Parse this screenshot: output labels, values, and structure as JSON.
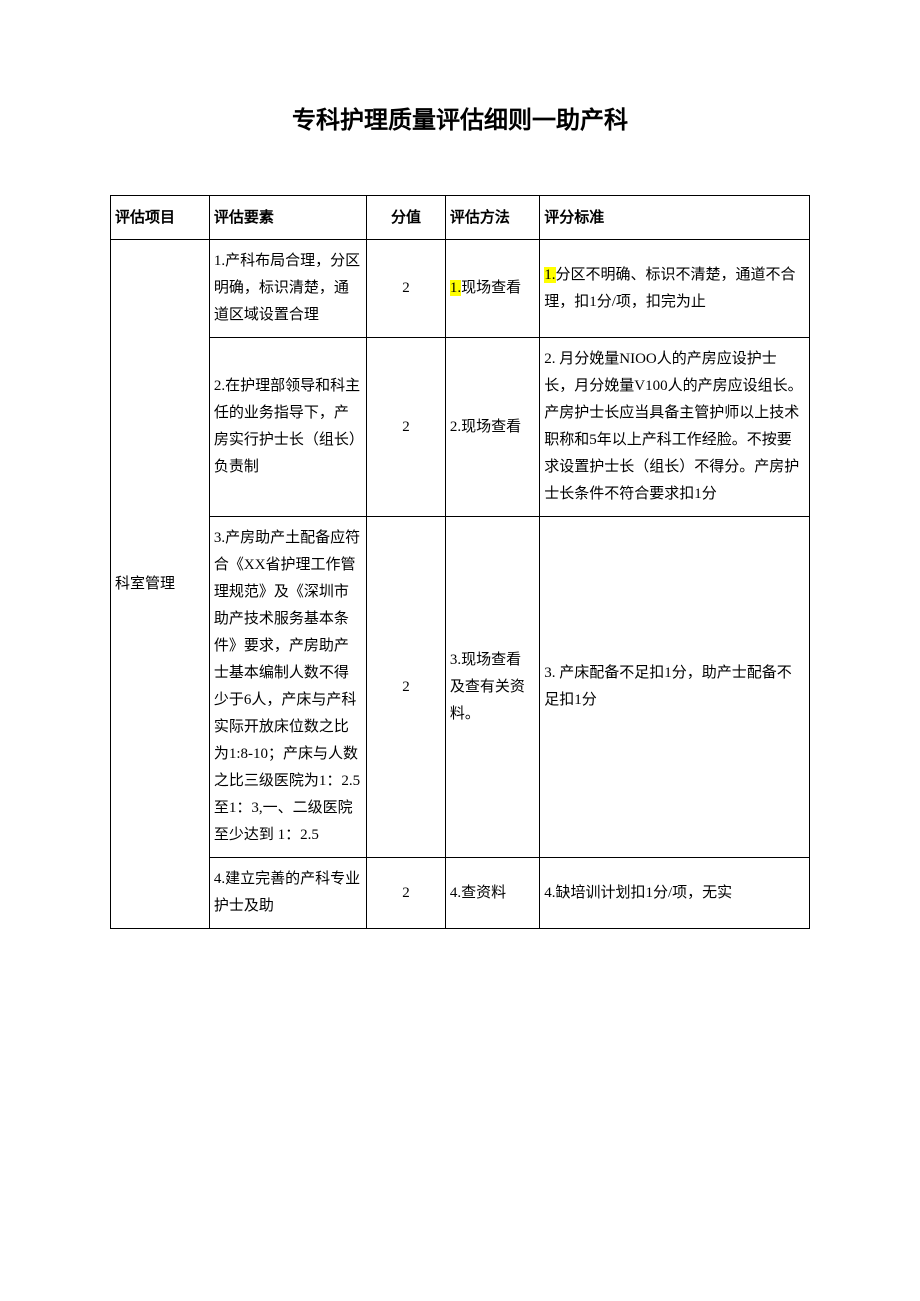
{
  "title": "专科护理质量评估细则一助产科",
  "headers": {
    "item": "评估项目",
    "element": "评估要素",
    "score": "分值",
    "method": "评估方法",
    "standard": "评分标准"
  },
  "category": "科室管理",
  "rows": [
    {
      "element": "1.产科布局合理，分区明确，标识清楚，通道区域设置合理",
      "score": "2",
      "method_prefix": "1.",
      "method_rest": "现场查看",
      "standard_prefix": "1.",
      "standard_rest": "分区不明确、标识不清楚，通道不合理，扣1分/项，扣完为止"
    },
    {
      "element": "2.在护理部领导和科主任的业务指导下，产房实行护士长（组长）负责制",
      "score": "2",
      "method": "2.现场查看",
      "standard": "2. 月分娩量NIOO人的产房应设护士长，月分娩量V100人的产房应设组长。产房护士长应当具备主管护师以上技术职称和5年以上产科工作经脸。不按要求设置护士长（组长）不得分。产房护士长条件不符合要求扣1分"
    },
    {
      "element": "3.产房助产土配备应符合《XX省护理工作管理规范》及《深圳市助产技术服务基本条件》要求，产房助产士基本编制人数不得少于6人，产床与产科实际开放床位数之比为1:8-10；产床与人数之比三级医院为1：2.5至1：3,一、二级医院至少达到\n1：2.5",
      "score": "2",
      "method": "3.现场查看及查有关资料。",
      "standard": "3. 产床配备不足扣1分，助产士配备不足扣1分"
    },
    {
      "element": "4.建立完善的产科专业护士及助",
      "score": "2",
      "method": "4.查资料",
      "standard": "4.缺培训计划扣1分/项，无实"
    }
  ],
  "highlight_color": "#ffff00"
}
